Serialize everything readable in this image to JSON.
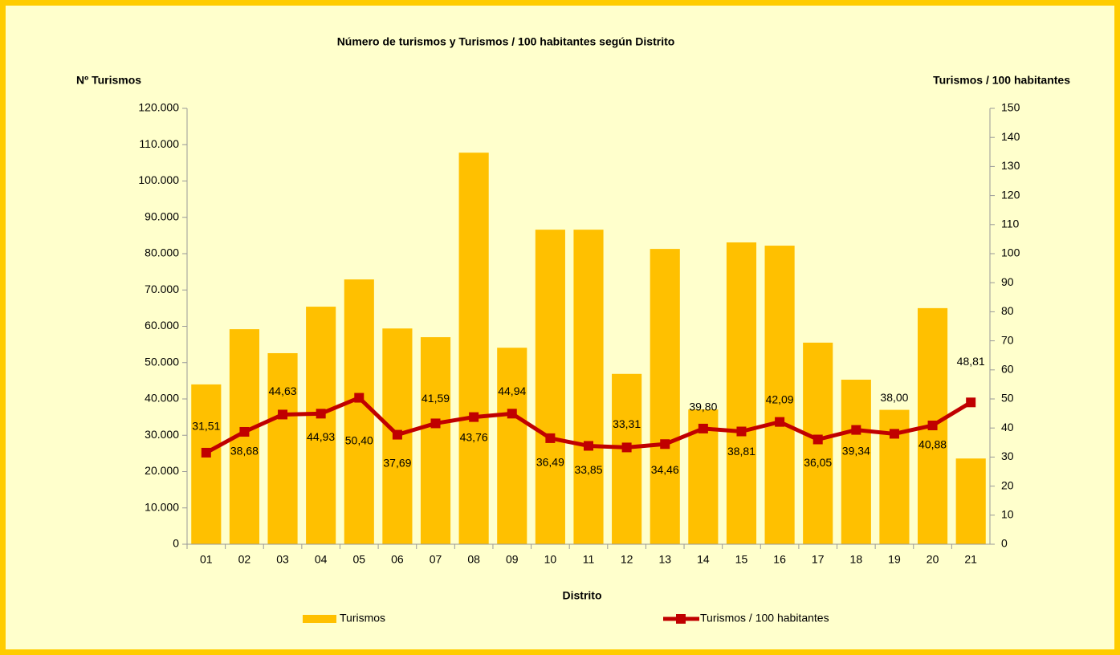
{
  "chart_data": {
    "type": "bar_line",
    "title": "Número de turismos y Turismos / 100 habitantes según Distrito",
    "y_label": "Nº Turismos",
    "y2_label": "Turismos / 100 habitantes",
    "x_label": "Distrito",
    "categories": [
      "01",
      "02",
      "03",
      "04",
      "05",
      "06",
      "07",
      "08",
      "09",
      "10",
      "11",
      "12",
      "13",
      "14",
      "15",
      "16",
      "17",
      "18",
      "19",
      "20",
      "21"
    ],
    "series": [
      {
        "name": "Turismos",
        "type": "bar",
        "color": "#ffc000",
        "values": [
          44000,
          59200,
          52600,
          65400,
          72900,
          59400,
          57000,
          107800,
          54100,
          86600,
          86600,
          46900,
          81300,
          37100,
          83100,
          82200,
          55500,
          45300,
          37000,
          65000,
          23600
        ]
      },
      {
        "name": "Turismos / 100 habitantes",
        "type": "line",
        "axis": "y2",
        "color": "#c00000",
        "values": [
          31.51,
          38.68,
          44.63,
          44.93,
          50.4,
          37.69,
          41.59,
          43.76,
          44.94,
          36.49,
          33.85,
          33.31,
          34.46,
          39.8,
          38.81,
          42.09,
          36.05,
          39.34,
          38.0,
          40.88,
          48.81
        ],
        "value_labels": [
          "31,51",
          "38,68",
          "44,63",
          "44,93",
          "50,40",
          "37,69",
          "41,59",
          "43,76",
          "44,94",
          "36,49",
          "33,85",
          "33,31",
          "34,46",
          "39,80",
          "38,81",
          "42,09",
          "36,05",
          "39,34",
          "38,00",
          "40,88",
          "48,81"
        ]
      }
    ],
    "ylim": [
      0,
      120000
    ],
    "yticks": [
      0,
      {
        "value": 10000,
        "label": "10.000"
      },
      {
        "value": 20000,
        "label": "20.000"
      },
      {
        "value": 30000,
        "label": "30.000"
      },
      {
        "value": 40000,
        "label": "40.000"
      },
      {
        "value": 50000,
        "label": "50.000"
      },
      {
        "value": 60000,
        "label": "60.000"
      },
      {
        "value": 70000,
        "label": "70.000"
      },
      {
        "value": 80000,
        "label": "80.000"
      },
      {
        "value": 90000,
        "label": "90.000"
      },
      {
        "value": 100000,
        "label": "100.000"
      },
      {
        "value": 110000,
        "label": "110.000"
      },
      {
        "value": 120000,
        "label": "120.000"
      }
    ],
    "y2lim": [
      0,
      150
    ],
    "y2ticks": [
      0,
      10,
      20,
      30,
      40,
      50,
      60,
      70,
      80,
      90,
      100,
      110,
      120,
      130,
      140,
      150
    ],
    "legend": "bottom"
  }
}
